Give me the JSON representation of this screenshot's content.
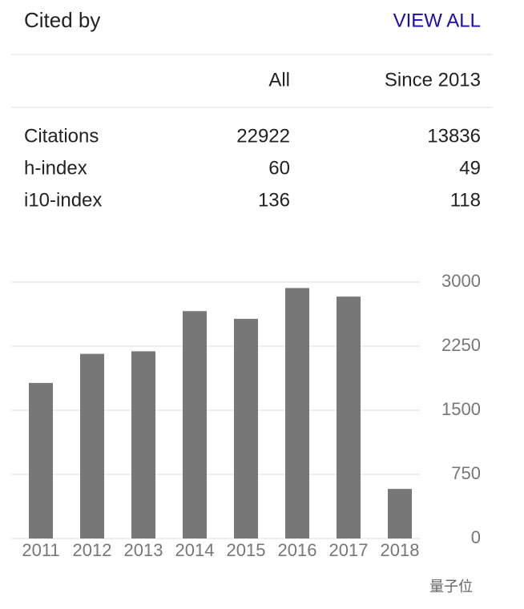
{
  "header": {
    "title": "Cited by",
    "link": "VIEW ALL"
  },
  "table": {
    "header": [
      "All",
      "Since 2013"
    ],
    "rows": [
      [
        "Citations",
        22922,
        13836
      ],
      [
        "h-index",
        60,
        49
      ],
      [
        "i10-index",
        136,
        118
      ]
    ]
  },
  "chart_data": {
    "type": "bar",
    "categories": [
      "2011",
      "2012",
      "2013",
      "2014",
      "2015",
      "2016",
      "2017",
      "2018"
    ],
    "values": [
      1820,
      2160,
      2190,
      2660,
      2570,
      2930,
      2830,
      580
    ],
    "color": "#777777",
    "ylim": [
      0,
      3000
    ],
    "yticks": [
      0,
      750,
      1500,
      2250,
      3000
    ],
    "grid": true
  },
  "watermark": "量子位"
}
